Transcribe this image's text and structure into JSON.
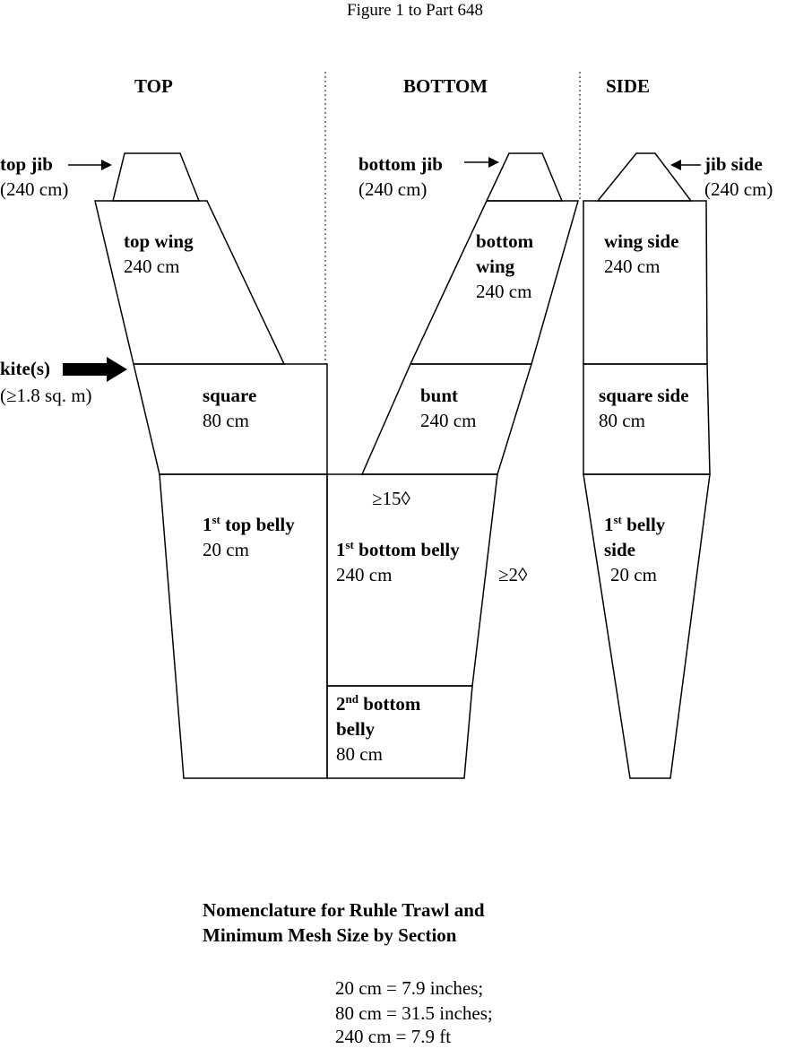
{
  "figure_title": "Figure 1 to Part 648",
  "headers": {
    "top": "TOP",
    "bottom": "BOTTOM",
    "side": "SIDE"
  },
  "callouts": {
    "top_jib": {
      "name": "top jib",
      "size": "(240 cm)"
    },
    "bottom_jib": {
      "name": "bottom jib",
      "size": "(240 cm)"
    },
    "jib_side": {
      "name": "jib side",
      "size": "(240 cm)"
    },
    "kites": {
      "name": "kite(s)",
      "size": "(≥1.8 sq. m)"
    }
  },
  "sections": {
    "top_wing": {
      "name": "top wing",
      "mesh": "240 cm"
    },
    "square": {
      "name": "square",
      "mesh": "80 cm"
    },
    "first_top_belly": {
      "ordinal": "1",
      "suffix": "st",
      "name": " top belly",
      "mesh": "20 cm"
    },
    "bottom_wing": {
      "name_line1": "bottom",
      "name_line2": "wing",
      "mesh": "240 cm"
    },
    "bunt": {
      "name": "bunt",
      "mesh": "240 cm"
    },
    "first_bottom_belly": {
      "ordinal": "1",
      "suffix": "st",
      "name": " bottom belly",
      "mesh": "240 cm"
    },
    "second_bottom_belly": {
      "ordinal": "2",
      "suffix": "nd",
      "name": " bottom",
      "name_line2": "belly",
      "mesh": "80 cm"
    },
    "wing_side": {
      "name": "wing side",
      "mesh": "240 cm"
    },
    "square_side": {
      "name": "square side",
      "mesh": "80 cm"
    },
    "first_belly_side": {
      "ordinal": "1",
      "suffix": "st",
      "name": " belly",
      "name_line2": "side",
      "mesh": "20 cm"
    }
  },
  "mesh_annotations": {
    "meshes_15": "≥15◊",
    "meshes_2": "≥2◊"
  },
  "caption": {
    "line1": "Nomenclature for Ruhle Trawl and",
    "line2": "Minimum Mesh Size by Section"
  },
  "conversions": [
    "20 cm = 7.9 inches;",
    "80 cm = 31.5 inches;",
    "240 cm = 7.9 ft"
  ]
}
